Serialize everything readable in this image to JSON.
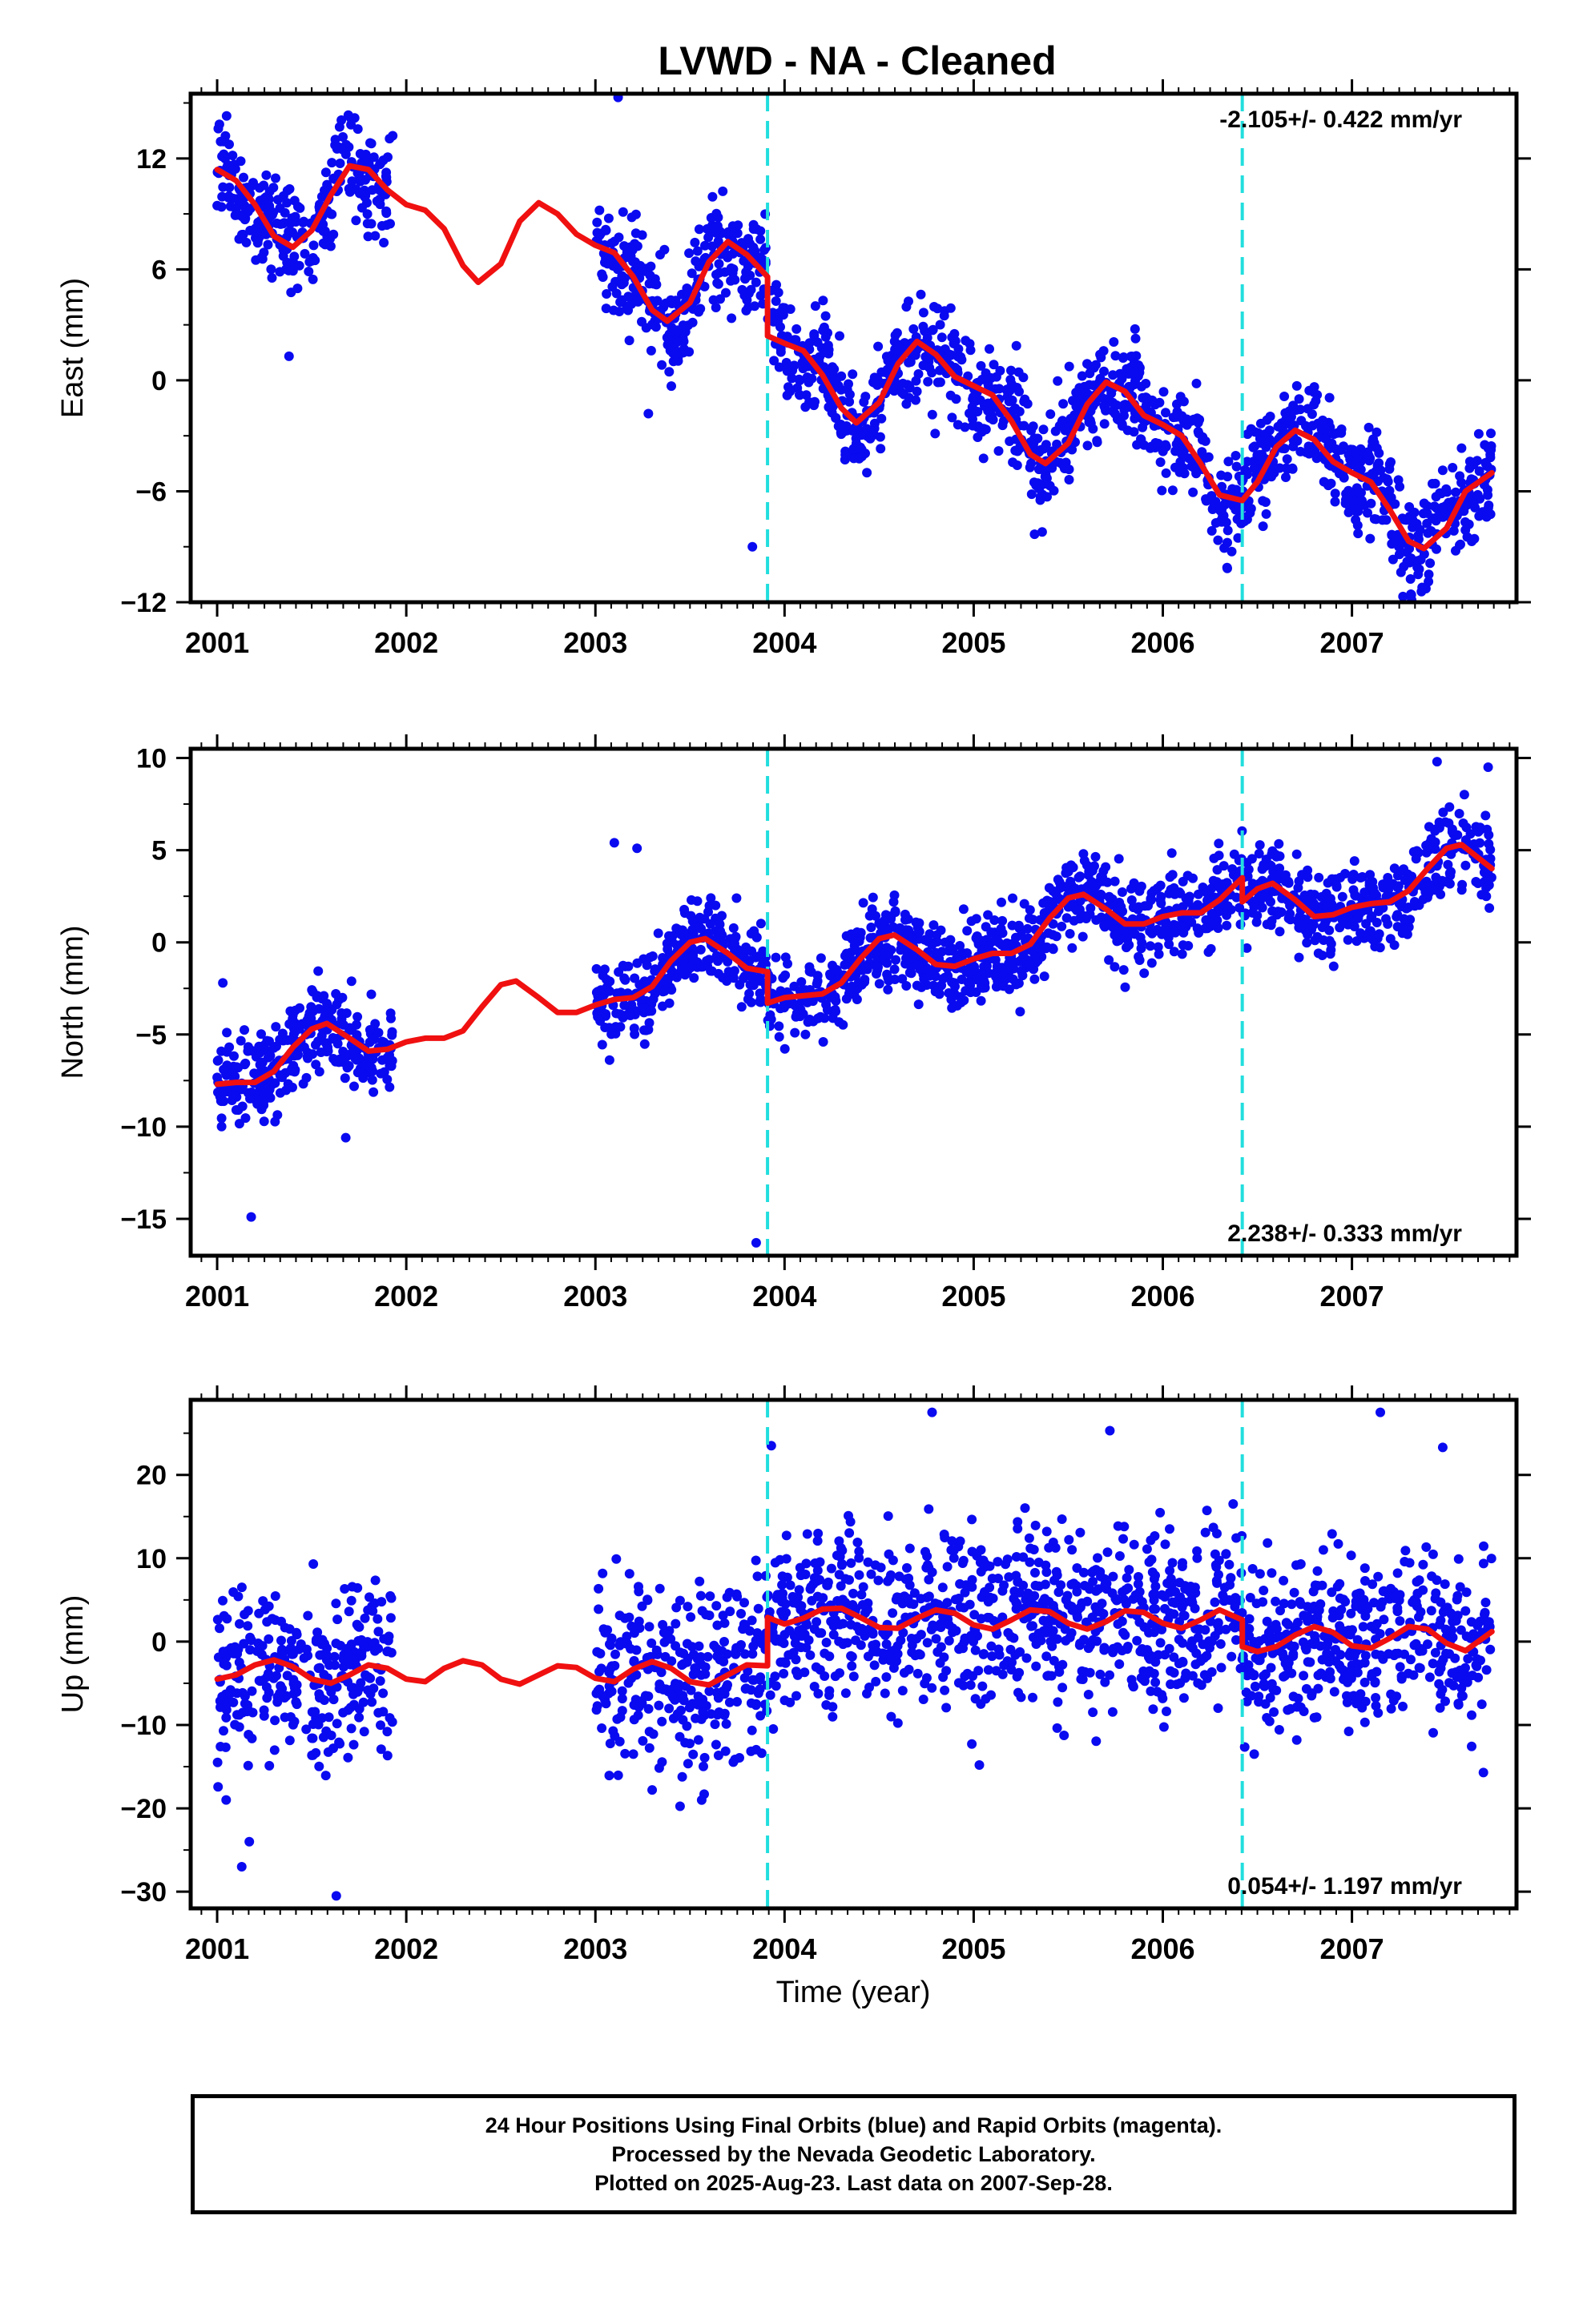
{
  "title": "LVWD  - NA - Cleaned",
  "xlabel": "Time (year)",
  "chart_data": [
    {
      "type": "scatter",
      "ylabel": "East (mm)",
      "rate": "-2.105+/- 0.422 mm/yr",
      "xlim": [
        2000.86,
        2007.87
      ],
      "ylim": [
        -12,
        15.5
      ],
      "yticks": [
        12,
        6,
        0,
        -6,
        -12
      ],
      "xticks": [
        2001,
        2002,
        2003,
        2004,
        2005,
        2006,
        2007
      ],
      "steps": [
        2003.91,
        2006.42
      ],
      "fit": [
        {
          "x": 2001.0,
          "y": 11.4
        },
        {
          "x": 2001.1,
          "y": 10.8
        },
        {
          "x": 2001.2,
          "y": 9.5
        },
        {
          "x": 2001.3,
          "y": 7.8
        },
        {
          "x": 2001.4,
          "y": 7.2
        },
        {
          "x": 2001.5,
          "y": 8.1
        },
        {
          "x": 2001.6,
          "y": 10.0
        },
        {
          "x": 2001.7,
          "y": 11.6
        },
        {
          "x": 2001.8,
          "y": 11.4
        },
        {
          "x": 2001.9,
          "y": 10.3
        },
        {
          "x": 2002.0,
          "y": 9.5
        },
        {
          "x": 2002.1,
          "y": 9.2
        },
        {
          "x": 2002.2,
          "y": 8.2
        },
        {
          "x": 2002.3,
          "y": 6.2
        },
        {
          "x": 2002.38,
          "y": 5.3
        },
        {
          "x": 2002.5,
          "y": 6.3
        },
        {
          "x": 2002.6,
          "y": 8.6
        },
        {
          "x": 2002.7,
          "y": 9.6
        },
        {
          "x": 2002.8,
          "y": 9.0
        },
        {
          "x": 2002.9,
          "y": 7.9
        },
        {
          "x": 2003.0,
          "y": 7.3
        },
        {
          "x": 2003.1,
          "y": 6.9
        },
        {
          "x": 2003.2,
          "y": 5.6
        },
        {
          "x": 2003.3,
          "y": 3.8
        },
        {
          "x": 2003.38,
          "y": 3.2
        },
        {
          "x": 2003.5,
          "y": 4.2
        },
        {
          "x": 2003.6,
          "y": 6.4
        },
        {
          "x": 2003.7,
          "y": 7.5
        },
        {
          "x": 2003.8,
          "y": 6.8
        },
        {
          "x": 2003.91,
          "y": 5.6
        },
        {
          "x": 2003.91,
          "y": 2.4
        },
        {
          "x": 2004.0,
          "y": 2.0
        },
        {
          "x": 2004.1,
          "y": 1.6
        },
        {
          "x": 2004.2,
          "y": 0.3
        },
        {
          "x": 2004.3,
          "y": -1.5
        },
        {
          "x": 2004.38,
          "y": -2.3
        },
        {
          "x": 2004.5,
          "y": -1.2
        },
        {
          "x": 2004.6,
          "y": 0.9
        },
        {
          "x": 2004.7,
          "y": 2.1
        },
        {
          "x": 2004.8,
          "y": 1.4
        },
        {
          "x": 2004.9,
          "y": 0.2
        },
        {
          "x": 2005.0,
          "y": -0.3
        },
        {
          "x": 2005.1,
          "y": -0.8
        },
        {
          "x": 2005.2,
          "y": -2.2
        },
        {
          "x": 2005.3,
          "y": -4.0
        },
        {
          "x": 2005.38,
          "y": -4.5
        },
        {
          "x": 2005.5,
          "y": -3.4
        },
        {
          "x": 2005.6,
          "y": -1.3
        },
        {
          "x": 2005.7,
          "y": -0.1
        },
        {
          "x": 2005.8,
          "y": -0.6
        },
        {
          "x": 2005.9,
          "y": -1.9
        },
        {
          "x": 2006.0,
          "y": -2.4
        },
        {
          "x": 2006.1,
          "y": -3.0
        },
        {
          "x": 2006.2,
          "y": -4.5
        },
        {
          "x": 2006.3,
          "y": -6.2
        },
        {
          "x": 2006.42,
          "y": -6.5
        },
        {
          "x": 2006.5,
          "y": -5.5
        },
        {
          "x": 2006.6,
          "y": -3.6
        },
        {
          "x": 2006.7,
          "y": -2.7
        },
        {
          "x": 2006.8,
          "y": -3.2
        },
        {
          "x": 2006.9,
          "y": -4.4
        },
        {
          "x": 2007.0,
          "y": -5.0
        },
        {
          "x": 2007.1,
          "y": -5.5
        },
        {
          "x": 2007.2,
          "y": -7.0
        },
        {
          "x": 2007.3,
          "y": -8.7
        },
        {
          "x": 2007.38,
          "y": -9.1
        },
        {
          "x": 2007.5,
          "y": -8.0
        },
        {
          "x": 2007.6,
          "y": -6.0
        },
        {
          "x": 2007.74,
          "y": -5.0
        }
      ],
      "segments": [
        [
          2001.0,
          2001.93
        ],
        [
          2003.0,
          2007.74
        ]
      ],
      "model": {
        "amp": 2.2,
        "phase": 0.1,
        "noise": 1.35,
        "count": 1850,
        "seed": 11
      },
      "outliers": [
        {
          "x": 2001.05,
          "y": 14.3
        },
        {
          "x": 2003.12,
          "y": 15.3
        },
        {
          "x": 2003.83,
          "y": -9.0
        },
        {
          "x": 2001.38,
          "y": 1.3
        },
        {
          "x": 2003.28,
          "y": -1.8
        }
      ]
    },
    {
      "type": "scatter",
      "ylabel": "North (mm)",
      "rate": "2.238+/- 0.333 mm/yr",
      "xlim": [
        2000.86,
        2007.87
      ],
      "ylim": [
        -17,
        10.5
      ],
      "yticks": [
        10,
        5,
        0,
        -5,
        -10,
        -15
      ],
      "xticks": [
        2001,
        2002,
        2003,
        2004,
        2005,
        2006,
        2007
      ],
      "steps": [
        2003.91,
        2006.42
      ],
      "fit": [
        {
          "x": 2001.0,
          "y": -7.7
        },
        {
          "x": 2001.1,
          "y": -7.6
        },
        {
          "x": 2001.2,
          "y": -7.6
        },
        {
          "x": 2001.3,
          "y": -7.0
        },
        {
          "x": 2001.4,
          "y": -5.7
        },
        {
          "x": 2001.5,
          "y": -4.7
        },
        {
          "x": 2001.58,
          "y": -4.4
        },
        {
          "x": 2001.7,
          "y": -5.2
        },
        {
          "x": 2001.8,
          "y": -5.9
        },
        {
          "x": 2001.9,
          "y": -5.8
        },
        {
          "x": 2002.0,
          "y": -5.4
        },
        {
          "x": 2002.1,
          "y": -5.2
        },
        {
          "x": 2002.2,
          "y": -5.2
        },
        {
          "x": 2002.3,
          "y": -4.8
        },
        {
          "x": 2002.4,
          "y": -3.5
        },
        {
          "x": 2002.5,
          "y": -2.3
        },
        {
          "x": 2002.58,
          "y": -2.1
        },
        {
          "x": 2002.7,
          "y": -3.0
        },
        {
          "x": 2002.8,
          "y": -3.8
        },
        {
          "x": 2002.9,
          "y": -3.8
        },
        {
          "x": 2003.0,
          "y": -3.4
        },
        {
          "x": 2003.1,
          "y": -3.1
        },
        {
          "x": 2003.2,
          "y": -3.0
        },
        {
          "x": 2003.3,
          "y": -2.4
        },
        {
          "x": 2003.4,
          "y": -1.0
        },
        {
          "x": 2003.5,
          "y": 0.0
        },
        {
          "x": 2003.58,
          "y": 0.2
        },
        {
          "x": 2003.7,
          "y": -0.6
        },
        {
          "x": 2003.8,
          "y": -1.4
        },
        {
          "x": 2003.91,
          "y": -1.6
        },
        {
          "x": 2003.91,
          "y": -3.3
        },
        {
          "x": 2004.0,
          "y": -3.0
        },
        {
          "x": 2004.1,
          "y": -2.9
        },
        {
          "x": 2004.2,
          "y": -2.8
        },
        {
          "x": 2004.3,
          "y": -2.2
        },
        {
          "x": 2004.4,
          "y": -0.9
        },
        {
          "x": 2004.5,
          "y": 0.2
        },
        {
          "x": 2004.58,
          "y": 0.4
        },
        {
          "x": 2004.7,
          "y": -0.4
        },
        {
          "x": 2004.8,
          "y": -1.2
        },
        {
          "x": 2004.9,
          "y": -1.3
        },
        {
          "x": 2005.0,
          "y": -0.9
        },
        {
          "x": 2005.1,
          "y": -0.6
        },
        {
          "x": 2005.2,
          "y": -0.6
        },
        {
          "x": 2005.3,
          "y": -0.1
        },
        {
          "x": 2005.4,
          "y": 1.3
        },
        {
          "x": 2005.5,
          "y": 2.4
        },
        {
          "x": 2005.58,
          "y": 2.6
        },
        {
          "x": 2005.7,
          "y": 1.8
        },
        {
          "x": 2005.8,
          "y": 1.0
        },
        {
          "x": 2005.9,
          "y": 1.0
        },
        {
          "x": 2006.0,
          "y": 1.4
        },
        {
          "x": 2006.1,
          "y": 1.6
        },
        {
          "x": 2006.2,
          "y": 1.6
        },
        {
          "x": 2006.3,
          "y": 2.3
        },
        {
          "x": 2006.42,
          "y": 3.5
        },
        {
          "x": 2006.42,
          "y": 2.2
        },
        {
          "x": 2006.5,
          "y": 2.9
        },
        {
          "x": 2006.58,
          "y": 3.2
        },
        {
          "x": 2006.7,
          "y": 2.3
        },
        {
          "x": 2006.8,
          "y": 1.4
        },
        {
          "x": 2006.9,
          "y": 1.5
        },
        {
          "x": 2007.0,
          "y": 1.9
        },
        {
          "x": 2007.1,
          "y": 2.1
        },
        {
          "x": 2007.2,
          "y": 2.2
        },
        {
          "x": 2007.3,
          "y": 2.8
        },
        {
          "x": 2007.4,
          "y": 4.0
        },
        {
          "x": 2007.5,
          "y": 5.1
        },
        {
          "x": 2007.58,
          "y": 5.3
        },
        {
          "x": 2007.74,
          "y": 4.0
        }
      ],
      "segments": [
        [
          2001.0,
          2001.93
        ],
        [
          2003.0,
          2007.74
        ]
      ],
      "model": {
        "amp": 0.0,
        "phase": 0.0,
        "noise": 1.15,
        "count": 1850,
        "seed": 23
      },
      "outliers": [
        {
          "x": 2001.03,
          "y": -2.2
        },
        {
          "x": 2001.18,
          "y": -14.9
        },
        {
          "x": 2003.1,
          "y": 5.4
        },
        {
          "x": 2003.22,
          "y": 5.1
        },
        {
          "x": 2003.85,
          "y": -16.3
        },
        {
          "x": 2007.45,
          "y": 9.8
        },
        {
          "x": 2007.72,
          "y": 9.5
        },
        {
          "x": 2001.68,
          "y": -10.6
        }
      ]
    },
    {
      "type": "scatter",
      "ylabel": "Up (mm)",
      "rate": "0.054+/- 1.197 mm/yr",
      "xlim": [
        2000.86,
        2007.87
      ],
      "ylim": [
        -32,
        29
      ],
      "yticks": [
        20,
        10,
        0,
        -10,
        -20,
        -30
      ],
      "xticks": [
        2001,
        2002,
        2003,
        2004,
        2005,
        2006,
        2007
      ],
      "steps": [
        2003.91,
        2006.42
      ],
      "fit": [
        {
          "x": 2001.0,
          "y": -4.5
        },
        {
          "x": 2001.1,
          "y": -4.0
        },
        {
          "x": 2001.2,
          "y": -2.8
        },
        {
          "x": 2001.3,
          "y": -2.2
        },
        {
          "x": 2001.4,
          "y": -3.0
        },
        {
          "x": 2001.5,
          "y": -4.5
        },
        {
          "x": 2001.6,
          "y": -5.0
        },
        {
          "x": 2001.7,
          "y": -4.0
        },
        {
          "x": 2001.8,
          "y": -2.8
        },
        {
          "x": 2001.9,
          "y": -3.2
        },
        {
          "x": 2002.0,
          "y": -4.5
        },
        {
          "x": 2002.1,
          "y": -4.8
        },
        {
          "x": 2002.2,
          "y": -3.2
        },
        {
          "x": 2002.3,
          "y": -2.3
        },
        {
          "x": 2002.4,
          "y": -2.8
        },
        {
          "x": 2002.5,
          "y": -4.5
        },
        {
          "x": 2002.6,
          "y": -5.1
        },
        {
          "x": 2002.7,
          "y": -4.0
        },
        {
          "x": 2002.8,
          "y": -2.9
        },
        {
          "x": 2002.9,
          "y": -3.1
        },
        {
          "x": 2003.0,
          "y": -4.4
        },
        {
          "x": 2003.1,
          "y": -4.8
        },
        {
          "x": 2003.2,
          "y": -3.3
        },
        {
          "x": 2003.3,
          "y": -2.4
        },
        {
          "x": 2003.4,
          "y": -3.2
        },
        {
          "x": 2003.5,
          "y": -4.8
        },
        {
          "x": 2003.6,
          "y": -5.2
        },
        {
          "x": 2003.7,
          "y": -4.0
        },
        {
          "x": 2003.8,
          "y": -2.8
        },
        {
          "x": 2003.91,
          "y": -2.9
        },
        {
          "x": 2003.91,
          "y": 2.9
        },
        {
          "x": 2004.0,
          "y": 2.1
        },
        {
          "x": 2004.1,
          "y": 2.8
        },
        {
          "x": 2004.2,
          "y": 3.9
        },
        {
          "x": 2004.3,
          "y": 4.0
        },
        {
          "x": 2004.4,
          "y": 2.9
        },
        {
          "x": 2004.5,
          "y": 1.7
        },
        {
          "x": 2004.6,
          "y": 1.6
        },
        {
          "x": 2004.7,
          "y": 2.8
        },
        {
          "x": 2004.8,
          "y": 3.8
        },
        {
          "x": 2004.9,
          "y": 3.4
        },
        {
          "x": 2005.0,
          "y": 2.0
        },
        {
          "x": 2005.1,
          "y": 1.5
        },
        {
          "x": 2005.2,
          "y": 2.6
        },
        {
          "x": 2005.3,
          "y": 3.8
        },
        {
          "x": 2005.4,
          "y": 3.6
        },
        {
          "x": 2005.5,
          "y": 2.2
        },
        {
          "x": 2005.6,
          "y": 1.5
        },
        {
          "x": 2005.7,
          "y": 2.4
        },
        {
          "x": 2005.8,
          "y": 3.7
        },
        {
          "x": 2005.9,
          "y": 3.5
        },
        {
          "x": 2006.0,
          "y": 2.2
        },
        {
          "x": 2006.1,
          "y": 1.6
        },
        {
          "x": 2006.2,
          "y": 2.6
        },
        {
          "x": 2006.3,
          "y": 3.8
        },
        {
          "x": 2006.42,
          "y": 2.6
        },
        {
          "x": 2006.42,
          "y": -0.6
        },
        {
          "x": 2006.5,
          "y": -1.2
        },
        {
          "x": 2006.6,
          "y": -0.6
        },
        {
          "x": 2006.7,
          "y": 0.8
        },
        {
          "x": 2006.8,
          "y": 1.8
        },
        {
          "x": 2006.9,
          "y": 1.1
        },
        {
          "x": 2007.0,
          "y": -0.5
        },
        {
          "x": 2007.1,
          "y": -0.8
        },
        {
          "x": 2007.2,
          "y": 0.4
        },
        {
          "x": 2007.3,
          "y": 1.8
        },
        {
          "x": 2007.4,
          "y": 1.5
        },
        {
          "x": 2007.5,
          "y": -0.2
        },
        {
          "x": 2007.6,
          "y": -1.1
        },
        {
          "x": 2007.74,
          "y": 1.2
        }
      ],
      "segments": [
        [
          2001.0,
          2001.93
        ],
        [
          2003.0,
          2007.74
        ]
      ],
      "model": {
        "amp": 0.0,
        "phase": 0.0,
        "noise": 5.2,
        "count": 1850,
        "seed": 37
      },
      "outliers": [
        {
          "x": 2001.13,
          "y": -27.0
        },
        {
          "x": 2001.63,
          "y": -30.5
        },
        {
          "x": 2003.93,
          "y": 23.5
        },
        {
          "x": 2004.78,
          "y": 27.5
        },
        {
          "x": 2005.72,
          "y": 25.3
        },
        {
          "x": 2007.15,
          "y": 27.5
        },
        {
          "x": 2007.48,
          "y": 23.3
        },
        {
          "x": 2001.17,
          "y": -24.0
        },
        {
          "x": 2003.3,
          "y": -17.8
        },
        {
          "x": 2005.03,
          "y": -14.8
        }
      ]
    }
  ],
  "notes": [
    "24 Hour Positions Using Final Orbits (blue) and Rapid Orbits (magenta).",
    "Processed by the Nevada Geodetic Laboratory.",
    "Plotted on 2025-Aug-23. Last data on 2007-Sep-28."
  ],
  "colors": {
    "points": "#0a0af0",
    "fit": "#f01010",
    "step": "#22dede",
    "frame": "#000000"
  }
}
